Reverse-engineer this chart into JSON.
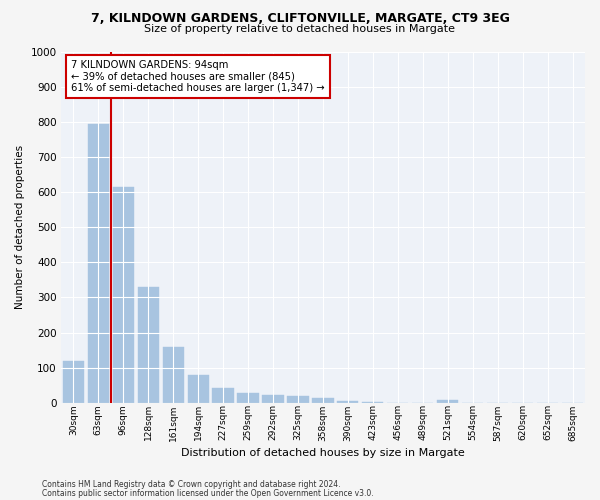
{
  "title_line1": "7, KILNDOWN GARDENS, CLIFTONVILLE, MARGATE, CT9 3EG",
  "title_line2": "Size of property relative to detached houses in Margate",
  "xlabel": "Distribution of detached houses by size in Margate",
  "ylabel": "Number of detached properties",
  "bar_color": "#a8c4e0",
  "bar_edge_color": "#a8c4e0",
  "background_color": "#eef2f8",
  "grid_color": "#ffffff",
  "categories": [
    "30sqm",
    "63sqm",
    "96sqm",
    "128sqm",
    "161sqm",
    "194sqm",
    "227sqm",
    "259sqm",
    "292sqm",
    "325sqm",
    "358sqm",
    "390sqm",
    "423sqm",
    "456sqm",
    "489sqm",
    "521sqm",
    "554sqm",
    "587sqm",
    "620sqm",
    "652sqm",
    "685sqm"
  ],
  "values": [
    120,
    795,
    615,
    330,
    160,
    80,
    42,
    28,
    22,
    20,
    14,
    5,
    1,
    0,
    0,
    8,
    0,
    0,
    0,
    0,
    0
  ],
  "property_label": "7 KILNDOWN GARDENS: 94sqm",
  "annotation_line2": "← 39% of detached houses are smaller (845)",
  "annotation_line3": "61% of semi-detached houses are larger (1,347) →",
  "vline_color": "#cc0000",
  "annotation_box_color": "#ffffff",
  "annotation_box_edge": "#cc0000",
  "ylim": [
    0,
    1000
  ],
  "yticks": [
    0,
    100,
    200,
    300,
    400,
    500,
    600,
    700,
    800,
    900,
    1000
  ],
  "footnote_line1": "Contains HM Land Registry data © Crown copyright and database right 2024.",
  "footnote_line2": "Contains public sector information licensed under the Open Government Licence v3.0.",
  "fig_facecolor": "#f5f5f5"
}
